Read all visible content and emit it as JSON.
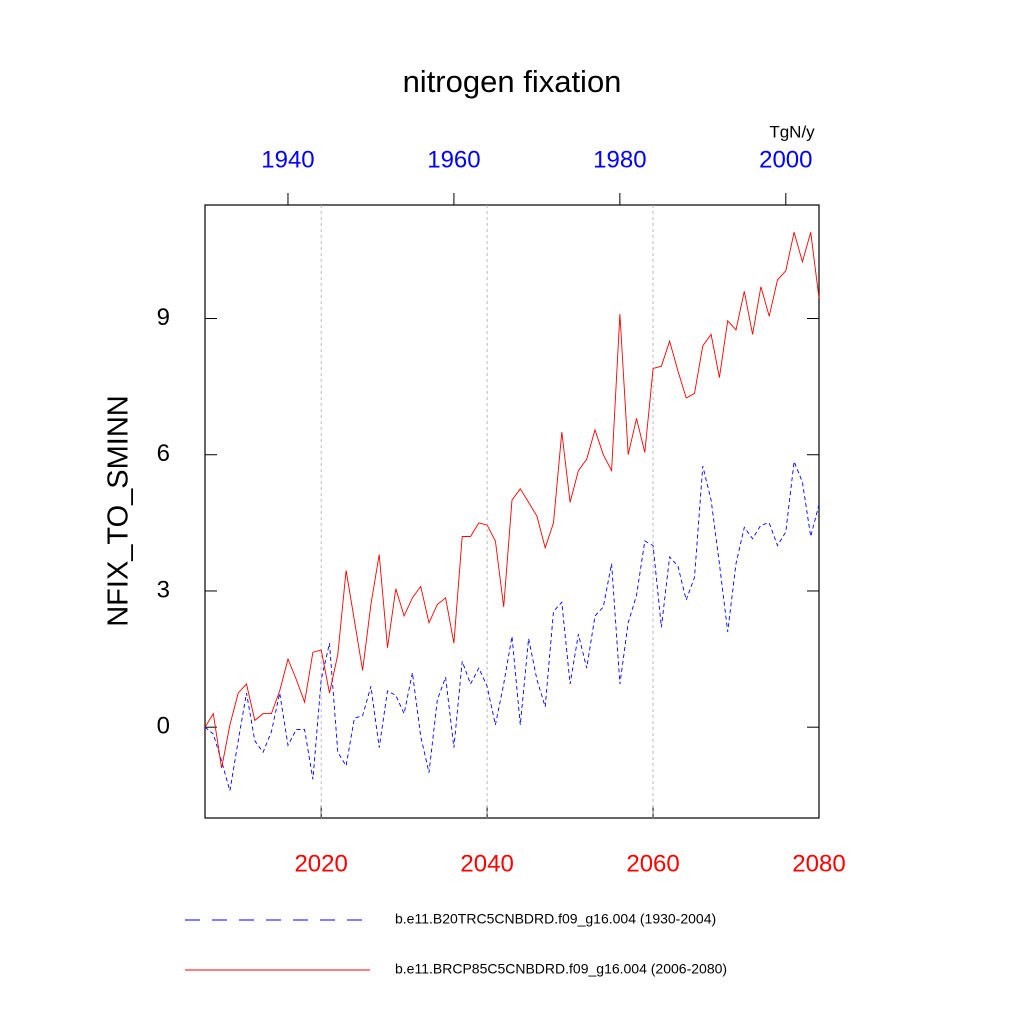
{
  "chart_data": {
    "type": "line",
    "title": "nitrogen fixation",
    "ylabel": "NFIX_TO_SMINN",
    "units": "TgN/y",
    "xlim": [
      2006,
      2080
    ],
    "xticks": [
      2020,
      2040,
      2060,
      2080
    ],
    "x_tick_color": "#ff0000",
    "x2lim": [
      1930,
      2004
    ],
    "x2ticks": [
      1940,
      1960,
      1980,
      2000
    ],
    "x2_tick_color": "#0000ff",
    "ylim": [
      -2,
      11.5
    ],
    "yticks": [
      0,
      3,
      6,
      9
    ],
    "grid": true,
    "series": [
      {
        "name": "b.e11.B20TRC5CNBDRD.f09_g16.004 (1930-2004)",
        "color": "#0000ff",
        "dashed": true,
        "axis": "x2",
        "x": [
          1930,
          1931,
          1932,
          1933,
          1934,
          1935,
          1936,
          1937,
          1938,
          1939,
          1940,
          1941,
          1942,
          1943,
          1944,
          1945,
          1946,
          1947,
          1948,
          1949,
          1950,
          1951,
          1952,
          1953,
          1954,
          1955,
          1956,
          1957,
          1958,
          1959,
          1960,
          1961,
          1962,
          1963,
          1964,
          1965,
          1966,
          1967,
          1968,
          1969,
          1970,
          1971,
          1972,
          1973,
          1974,
          1975,
          1976,
          1977,
          1978,
          1979,
          1980,
          1981,
          1982,
          1983,
          1984,
          1985,
          1986,
          1987,
          1988,
          1989,
          1990,
          1991,
          1992,
          1993,
          1994,
          1995,
          1996,
          1997,
          1998,
          1999,
          2000,
          2001,
          2002,
          2003,
          2004
        ],
        "values": [
          0,
          -0.15,
          -0.75,
          -1.4,
          -0.3,
          0.75,
          -0.3,
          -0.55,
          -0.1,
          0.75,
          -0.4,
          -0.05,
          -0.05,
          -1.15,
          1.05,
          1.85,
          -0.55,
          -0.85,
          0.2,
          0.25,
          0.9,
          -0.45,
          0.8,
          0.7,
          0.3,
          1.2,
          -0.2,
          -1.0,
          0.6,
          1.1,
          -0.45,
          1.45,
          0.95,
          1.3,
          0.9,
          0.05,
          0.95,
          2.0,
          0.05,
          1.95,
          1.05,
          0.45,
          2.55,
          2.75,
          0.95,
          2.05,
          1.3,
          2.45,
          2.65,
          3.6,
          0.95,
          2.3,
          2.9,
          4.1,
          4.0,
          2.2,
          3.75,
          3.55,
          2.8,
          3.3,
          5.75,
          5.0,
          3.6,
          2.1,
          3.6,
          4.4,
          4.15,
          4.45,
          4.5,
          4.0,
          4.3,
          5.85,
          5.4,
          4.2,
          4.9
        ]
      },
      {
        "name": "b.e11.BRCP85C5CNBDRD.f09_g16.004 (2006-2080)",
        "color": "#ff0000",
        "dashed": false,
        "x": [
          2006,
          2007,
          2008,
          2009,
          2010,
          2011,
          2012,
          2013,
          2014,
          2015,
          2016,
          2017,
          2018,
          2019,
          2020,
          2021,
          2022,
          2023,
          2024,
          2025,
          2026,
          2027,
          2028,
          2029,
          2030,
          2031,
          2032,
          2033,
          2034,
          2035,
          2036,
          2037,
          2038,
          2039,
          2040,
          2041,
          2042,
          2043,
          2044,
          2045,
          2046,
          2047,
          2048,
          2049,
          2050,
          2051,
          2052,
          2053,
          2054,
          2055,
          2056,
          2057,
          2058,
          2059,
          2060,
          2061,
          2062,
          2063,
          2064,
          2065,
          2066,
          2067,
          2068,
          2069,
          2070,
          2071,
          2072,
          2073,
          2074,
          2075,
          2076,
          2077,
          2078,
          2079,
          2080
        ],
        "values": [
          0,
          0.3,
          -0.9,
          0.05,
          0.75,
          0.95,
          0.15,
          0.3,
          0.3,
          0.8,
          1.5,
          1.05,
          0.55,
          1.65,
          1.7,
          0.75,
          1.6,
          3.45,
          2.35,
          1.25,
          2.7,
          3.8,
          1.75,
          3.05,
          2.45,
          2.85,
          3.1,
          2.3,
          2.7,
          2.85,
          1.85,
          4.2,
          4.2,
          4.5,
          4.45,
          4.1,
          2.65,
          5.0,
          5.25,
          4.95,
          4.65,
          3.95,
          4.5,
          6.5,
          4.95,
          5.65,
          5.9,
          6.55,
          6.0,
          5.65,
          9.1,
          6.0,
          6.8,
          6.05,
          7.9,
          7.95,
          8.5,
          7.85,
          7.25,
          7.35,
          8.4,
          8.65,
          7.7,
          8.95,
          8.75,
          9.6,
          8.65,
          9.7,
          9.05,
          9.85,
          10.05,
          10.9,
          10.25,
          10.9,
          9.45
        ]
      }
    ]
  }
}
